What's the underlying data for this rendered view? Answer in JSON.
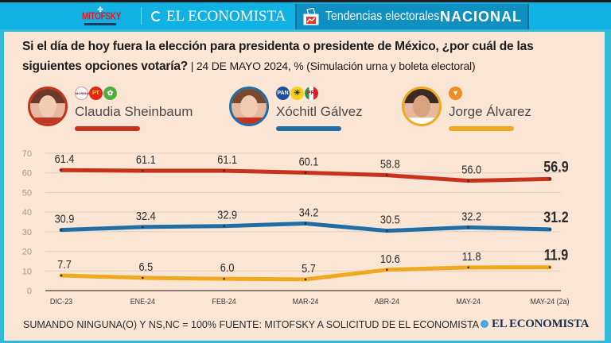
{
  "header": {
    "mitofsky_label": "MITOFSKY",
    "publisher": "EL ECONOMISTA",
    "section_label": "Tendencias electorales",
    "section_scope": "NACIONAL"
  },
  "question": {
    "text": "Si el día de hoy fuera la elección para presidenta o presidente de México, ¿por cuál de las siguientes opciones votaría?",
    "separator": " | ",
    "detail": "24 DE MAYO 2024, % (Simulación urna y boleta electoral)"
  },
  "candidates": [
    {
      "name": "Claudia Sheinbaum",
      "color": "#c8321c",
      "parties": [
        {
          "label": "MORENA",
          "icon": "morena-logo",
          "bg": "#ffffff",
          "fg": "#8b1e2b"
        },
        {
          "label": "PT",
          "icon": "pt-logo",
          "bg": "#e02418",
          "fg": "#ffde00"
        },
        {
          "label": "PVEM",
          "icon": "pvem-logo",
          "bg": "#4fae3d",
          "fg": "#ffffff"
        }
      ]
    },
    {
      "name": "Xóchitl Gálvez",
      "color": "#1f6ea8",
      "parties": [
        {
          "label": "PAN",
          "icon": "pan-logo",
          "bg": "#1b4fa0",
          "fg": "#ffffff"
        },
        {
          "label": "PRD",
          "icon": "prd-logo",
          "bg": "#f6d11a",
          "fg": "#333333"
        },
        {
          "label": "PRI",
          "icon": "pri-logo",
          "bg": "#12a04a",
          "fg": "#e11f26"
        }
      ]
    },
    {
      "name": "Jorge Álvarez",
      "color": "#f0a91f",
      "parties": [
        {
          "label": "MC",
          "icon": "mc-logo",
          "bg": "#f08c22",
          "fg": "#ffffff"
        }
      ]
    }
  ],
  "chart_data": {
    "type": "line",
    "title": "Si el día de hoy fuera la elección para presidenta o presidente de México, ¿por cuál de las siguientes opciones votaría?",
    "subtitle": "24 DE MAYO 2024, % (Simulación urna y boleta electoral)",
    "xlabel": "",
    "ylabel": "",
    "categories": [
      "DIC-23",
      "ENE-24",
      "FEB-24",
      "MAR-24",
      "ABR-24",
      "MAY-24",
      "MAY-24 (2a)"
    ],
    "yticks": [
      0,
      10,
      20,
      30,
      40,
      50,
      60,
      70
    ],
    "ylim": [
      0,
      70
    ],
    "grid": true,
    "legend": "top",
    "series": [
      {
        "name": "Claudia Sheinbaum",
        "color": "#c8321c",
        "values": [
          61.4,
          61.1,
          61.1,
          60.1,
          58.8,
          56.0,
          56.9
        ],
        "labels": [
          "61.4",
          "61.1",
          "61.1",
          "60.1",
          "58.8",
          "56.0",
          "56.9"
        ]
      },
      {
        "name": "Xóchitl Gálvez",
        "color": "#1f6ea8",
        "values": [
          30.9,
          32.4,
          32.9,
          34.2,
          30.5,
          32.2,
          31.2
        ],
        "labels": [
          "30.9",
          "32.4",
          "32.9",
          "34.2",
          "30.5",
          "32.2",
          "31.2"
        ]
      },
      {
        "name": "Jorge Álvarez",
        "color": "#f0a91f",
        "values": [
          7.7,
          6.5,
          6.0,
          5.7,
          10.6,
          11.8,
          11.9
        ],
        "labels": [
          "7.7",
          "6.5",
          "6.0",
          "5.7",
          "10.6",
          "11.8",
          "11.9"
        ]
      }
    ]
  },
  "footer": {
    "note": "SUMANDO NINGUNA(O) Y NS,NC = 100% FUENTE: MITOFSKY A SOLICITUD DE EL ECONOMISTA",
    "brand": "EL ECONOMISTA"
  }
}
